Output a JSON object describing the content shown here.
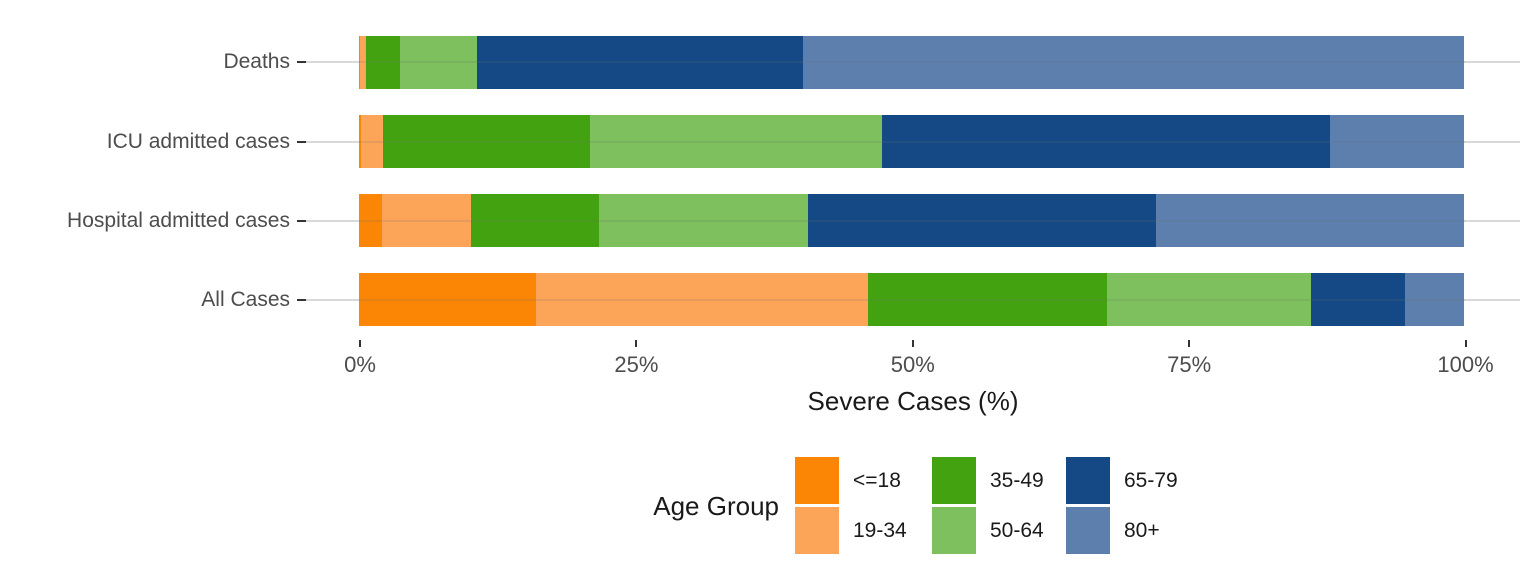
{
  "chart_data": {
    "type": "bar",
    "variant": "horizontal-stacked-percent",
    "title": "",
    "xlabel": "Severe Cases (%)",
    "ylabel": "",
    "xlim": [
      0,
      100
    ],
    "x_ticks": [
      {
        "value": 0,
        "label": "0%"
      },
      {
        "value": 25,
        "label": "25%"
      },
      {
        "value": 50,
        "label": "50%"
      },
      {
        "value": 75,
        "label": "75%"
      },
      {
        "value": 100,
        "label": "100%"
      }
    ],
    "categories": [
      "Deaths",
      "ICU admitted cases",
      "Hospital admitted cases",
      "All Cases"
    ],
    "series": [
      {
        "name": "<=18",
        "color": "#FB8505",
        "values": [
          0.1,
          0.2,
          2.1,
          16.0
        ]
      },
      {
        "name": "19-34",
        "color": "#FCA458",
        "values": [
          0.5,
          2.0,
          8.0,
          30.0
        ]
      },
      {
        "name": "35-49",
        "color": "#42A210",
        "values": [
          3.1,
          18.7,
          11.6,
          21.7
        ]
      },
      {
        "name": "50-64",
        "color": "#7DC05D",
        "values": [
          7.0,
          26.4,
          18.9,
          18.4
        ]
      },
      {
        "name": "65-79",
        "color": "#154985",
        "values": [
          29.5,
          40.5,
          31.5,
          8.5
        ]
      },
      {
        "name": "80+",
        "color": "#5C7FAD",
        "values": [
          59.8,
          12.2,
          27.9,
          5.4
        ]
      }
    ],
    "legend_title": "Age Group",
    "legend_position": "bottom",
    "grid": "horizontal-major-only",
    "colors": {
      "gridline": "#d9d9d9",
      "tick": "#333333",
      "axis_text": "#4d4d4d",
      "title_text": "#1a1a1a",
      "background": "#ffffff"
    }
  }
}
